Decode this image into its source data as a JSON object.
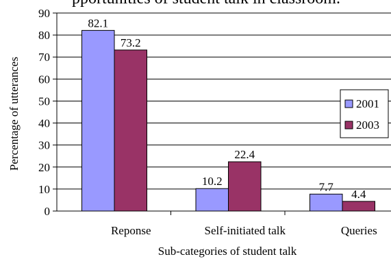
{
  "caption_fragment": "pportunities of student talk in classroom.",
  "chart_data": {
    "type": "bar",
    "title": "",
    "xlabel": "Sub-categories of student talk",
    "ylabel": "Percentage of utterances",
    "categories": [
      "Reponse",
      "Self-initiated talk",
      "Queries"
    ],
    "ylim": [
      0,
      90
    ],
    "yticks": [
      0,
      10,
      20,
      30,
      40,
      50,
      60,
      70,
      80,
      90
    ],
    "grid": true,
    "legend_position": "right",
    "series": [
      {
        "name": "2001",
        "color": "#9999ff",
        "values": [
          82.1,
          10.2,
          7.7
        ],
        "labels": [
          "82.1",
          "10.2",
          "7.7"
        ]
      },
      {
        "name": "2003",
        "color": "#993366",
        "values": [
          73.2,
          22.4,
          4.4
        ],
        "labels": [
          "73.2",
          "22.4",
          "4.4"
        ]
      }
    ]
  }
}
